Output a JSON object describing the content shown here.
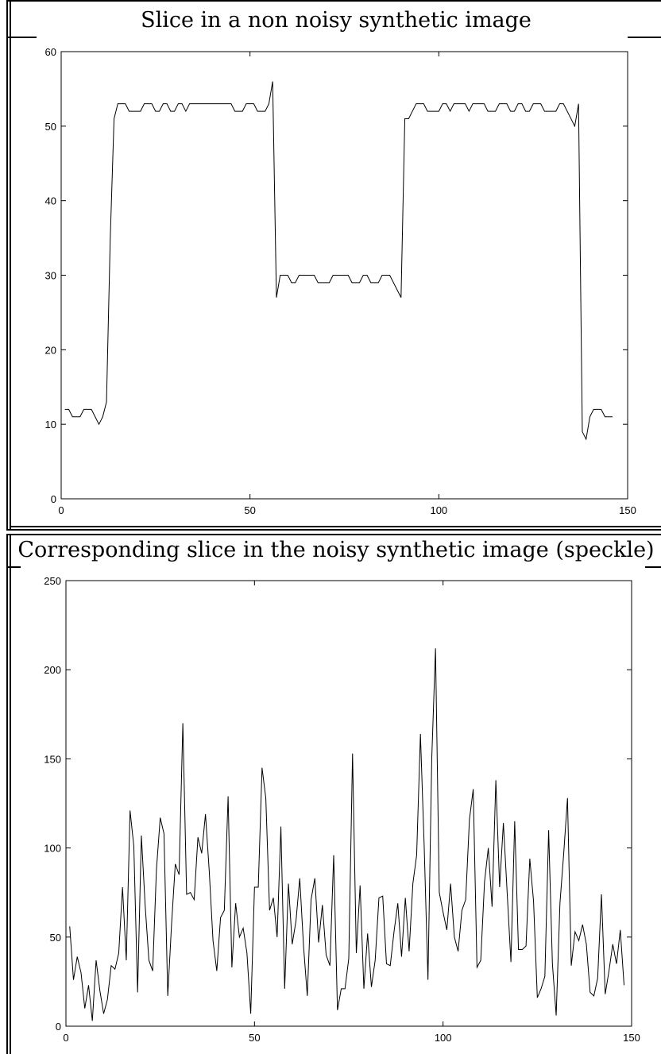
{
  "chart_data": [
    {
      "type": "line",
      "title": "Slice in a non noisy synthetic image",
      "xlabel": "",
      "ylabel": "",
      "xlim": [
        0,
        150
      ],
      "ylim": [
        0,
        60
      ],
      "xticks": [
        0,
        50,
        100,
        150
      ],
      "yticks": [
        0,
        10,
        20,
        30,
        40,
        50,
        60
      ],
      "grid": false,
      "series": [
        {
          "values": [
            12,
            12,
            11,
            11,
            11,
            12,
            12,
            12,
            11,
            10,
            11,
            13,
            35,
            51,
            53,
            53,
            53,
            52,
            52,
            52,
            52,
            53,
            53,
            53,
            52,
            52,
            53,
            53,
            52,
            52,
            53,
            53,
            52,
            53,
            53,
            53,
            53,
            53,
            53,
            53,
            53,
            53,
            53,
            53,
            53,
            52,
            52,
            52,
            53,
            53,
            53,
            52,
            52,
            52,
            53,
            56,
            27,
            30,
            30,
            30,
            29,
            29,
            30,
            30,
            30,
            30,
            30,
            29,
            29,
            29,
            29,
            30,
            30,
            30,
            30,
            30,
            29,
            29,
            29,
            30,
            30,
            29,
            29,
            29,
            30,
            30,
            30,
            29,
            28,
            27,
            51,
            51,
            52,
            53,
            53,
            53,
            52,
            52,
            52,
            52,
            53,
            53,
            52,
            53,
            53,
            53,
            53,
            52,
            53,
            53,
            53,
            53,
            52,
            52,
            52,
            53,
            53,
            53,
            52,
            52,
            53,
            53,
            52,
            52,
            53,
            53,
            53,
            52,
            52,
            52,
            52,
            53,
            53,
            52,
            51,
            50,
            53,
            9,
            8,
            11,
            12,
            12,
            12,
            11,
            11,
            11
          ]
        }
      ]
    },
    {
      "type": "line",
      "title": "Corresponding slice in the noisy synthetic image (speckle)",
      "xlabel": "",
      "ylabel": "",
      "xlim": [
        0,
        150
      ],
      "ylim": [
        0,
        250
      ],
      "xticks": [
        0,
        50,
        100,
        150
      ],
      "yticks": [
        0,
        50,
        100,
        150,
        200,
        250
      ],
      "grid": false,
      "series": [
        {
          "values": [
            56,
            26,
            39,
            30,
            10,
            23,
            3,
            37,
            20,
            7,
            15,
            34,
            32,
            41,
            78,
            37,
            121,
            101,
            19,
            107,
            68,
            37,
            31,
            88,
            117,
            108,
            17,
            57,
            91,
            85,
            170,
            74,
            75,
            71,
            106,
            97,
            119,
            87,
            48,
            31,
            61,
            65,
            129,
            33,
            69,
            50,
            55,
            41,
            7,
            78,
            78,
            145,
            128,
            65,
            72,
            50,
            112,
            21,
            80,
            46,
            59,
            83,
            45,
            17,
            71,
            83,
            47,
            68,
            40,
            34,
            96,
            9,
            21,
            21,
            38,
            153,
            41,
            79,
            21,
            52,
            22,
            37,
            72,
            73,
            35,
            34,
            53,
            69,
            39,
            72,
            42,
            80,
            96,
            164,
            101,
            26,
            150,
            212,
            75,
            64,
            54,
            80,
            50,
            42,
            65,
            71,
            116,
            133,
            33,
            37,
            81,
            100,
            67,
            138,
            78,
            114,
            75,
            36,
            115,
            43,
            43,
            45,
            94,
            70,
            16,
            21,
            28,
            110,
            35,
            6,
            69,
            97,
            128,
            34,
            53,
            48,
            57,
            46,
            19,
            17,
            27,
            74,
            18,
            31,
            46,
            35,
            54,
            23
          ]
        }
      ]
    }
  ]
}
